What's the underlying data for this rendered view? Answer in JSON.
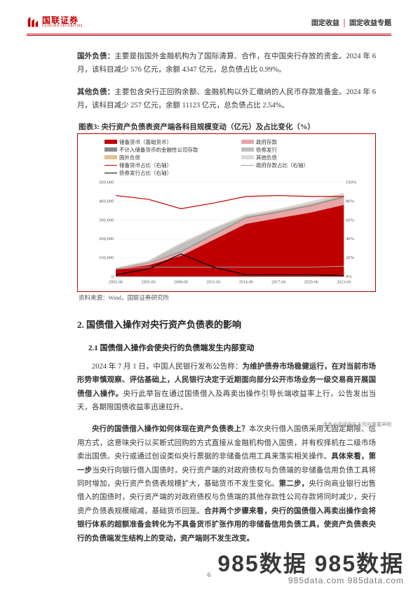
{
  "header": {
    "logo_cn": "国联证券",
    "logo_en": "GUOLIAN SECURITIES",
    "section_left": "固定收益",
    "section_right": "固定收益专题"
  },
  "para1_prefix_bold": "国外负债：",
  "para1_rest": "主要是指国外金融机构为了国际清算、合作，在中国央行存放的资金。2024 年 6 月，该科目减少 576 亿元，余额 4347 亿元，总负债占比 0.99%。",
  "para2_prefix_bold": "其他负债：",
  "para2_rest": "主要包含央行正回购余额、金融机构以外汇缴纳的人民币存款准备金。2024 年 6 月，该科目减少 257 亿元，余额 11123 亿元，总负债占比 2.54%。",
  "chart": {
    "label": "图表3:",
    "title": "央行资产负债表资产端各科目规模变动（亿元）及占比变化（%）",
    "legend": [
      {
        "name": "储备货币（基础货币）",
        "color": "#c00000",
        "type": "area"
      },
      {
        "name": "政府存款",
        "color": "#e6a6a6",
        "type": "area"
      },
      {
        "name": "不计入储备货币的金融性公司存款",
        "color": "#8a8a8a",
        "type": "area"
      },
      {
        "name": "债券发行",
        "color": "#bfbfbf",
        "type": "area"
      },
      {
        "name": "国外负债",
        "color": "#e0c090",
        "type": "area"
      },
      {
        "name": "其他负债",
        "color": "#d9d9d9",
        "type": "area"
      },
      {
        "name": "储备货币占比（右轴）",
        "color": "#c00000",
        "type": "line"
      },
      {
        "name": "政府存款占比（右轴）",
        "color": "#9e9e9e",
        "type": "line"
      },
      {
        "name": "债券发行占比（右轴）",
        "color": "#000000",
        "type": "line"
      }
    ],
    "x_ticks": [
      "2002-06",
      "2005-06",
      "2008-06",
      "2011-06",
      "2014-06",
      "2017-06",
      "2020-06",
      "2023-06"
    ],
    "y_left": {
      "min": 0,
      "max": 500000,
      "step": 100000,
      "ticks": [
        "0",
        "100,000",
        "200,000",
        "300,000",
        "400,000",
        "500,000"
      ]
    },
    "y_right": {
      "min": 0,
      "max": 100,
      "step": 20,
      "ticks": [
        "0%",
        "20%",
        "40%",
        "60%",
        "80%",
        "100%"
      ]
    },
    "series_area": {
      "x": [
        0,
        1,
        2,
        3,
        4,
        5,
        6,
        7
      ],
      "reserve": [
        38000,
        60000,
        110000,
        195000,
        280000,
        310000,
        340000,
        380000
      ],
      "gov_dep": [
        42000,
        70000,
        130000,
        220000,
        310000,
        340000,
        375000,
        420000
      ],
      "nonres": [
        43000,
        72000,
        135000,
        225000,
        315000,
        345000,
        380000,
        425000
      ],
      "bond": [
        44000,
        80000,
        170000,
        250000,
        320000,
        350000,
        385000,
        430000
      ],
      "foreign": [
        44500,
        81000,
        172000,
        252000,
        322000,
        352000,
        388000,
        433000
      ],
      "other": [
        46000,
        85000,
        180000,
        260000,
        330000,
        360000,
        400000,
        445000
      ]
    },
    "series_line_right": {
      "reserve_pct": [
        86,
        82,
        72,
        78,
        85,
        86,
        85,
        85
      ],
      "gov_pct": [
        8,
        10,
        10,
        10,
        10,
        10,
        10,
        11
      ],
      "bond_pct": [
        2,
        8,
        24,
        10,
        2,
        2,
        2,
        1
      ]
    },
    "colors": {
      "reserve": "#c00000",
      "gov_dep": "#e6a6a6",
      "nonres": "#8a8a8a",
      "bond": "#bfbfbf",
      "foreign": "#e0c090",
      "other": "#d9d9d9",
      "reserve_line": "#c00000",
      "gov_line": "#9e9e9e",
      "bond_line": "#000000",
      "grid": "#e6e6e6",
      "axis": "#9e9e9e"
    },
    "source": "资料来源：Wind，国联证券研究所"
  },
  "h2": "2.  国债借入操作对央行资产负债表的影响",
  "h3": "2.1 国债借入操作会使央行的负债端发生内部变动",
  "p3_a": "2024 年 7 月 1 日，中国人民银行发布公告称：",
  "p3_b_bold": "为维护债券市场稳健运行，在对当前市场形势审慎观察、评估基础上，人民银行决定于近期面向部分公开市场业务一级交易商开展国债借入操作。",
  "p3_c": "央行此举旨在通过国债借入及再卖出操作引导长端收益率上行，公告发出当天，各期限国债收益率迅速拉升。",
  "p4_a_bold": "央行的国债借入操作如何体现在资产负债表上？",
  "p4_b": "本次央行借入国债采用无固定期限、信用方式，这意味央行以买断式回购的方式直接从金融机构借入国债，并有权择机在二级市场卖出国债。央行或通过创设类似央行票据的非储备信用工具来落实相关操作。",
  "p4_c_bold": "具体来看，第一步",
  "p4_d": "当央行向银行借入国债时，央行资产端的对政府债权与负债端的非储备信用负债工具将同时增加，央行资产负债表规模扩大，基础货币不发生变化。",
  "p4_e_bold": "第二步，",
  "p4_f": "央行向商业银行出售借入的国债时，央行资产端的对政府债权与负债端的其他存款性公司存款将同时减少，央行资产负债表规模缩减，基础货币回笼。",
  "p4_g_bold": "合并两个步骤来看，央行的国债借入再卖出操作会将银行体系的超额准备金转化为不具备货币扩张作用的非储备信用负债工具，使资产负债表央行的负债端发生结构上的变动，资产端则不发生改变。",
  "side_note": "请务必阅读报告末页的重要声明",
  "page_num": "6",
  "watermark": "985数据 985数据",
  "watermark_sub": "985data.com  985data.com"
}
